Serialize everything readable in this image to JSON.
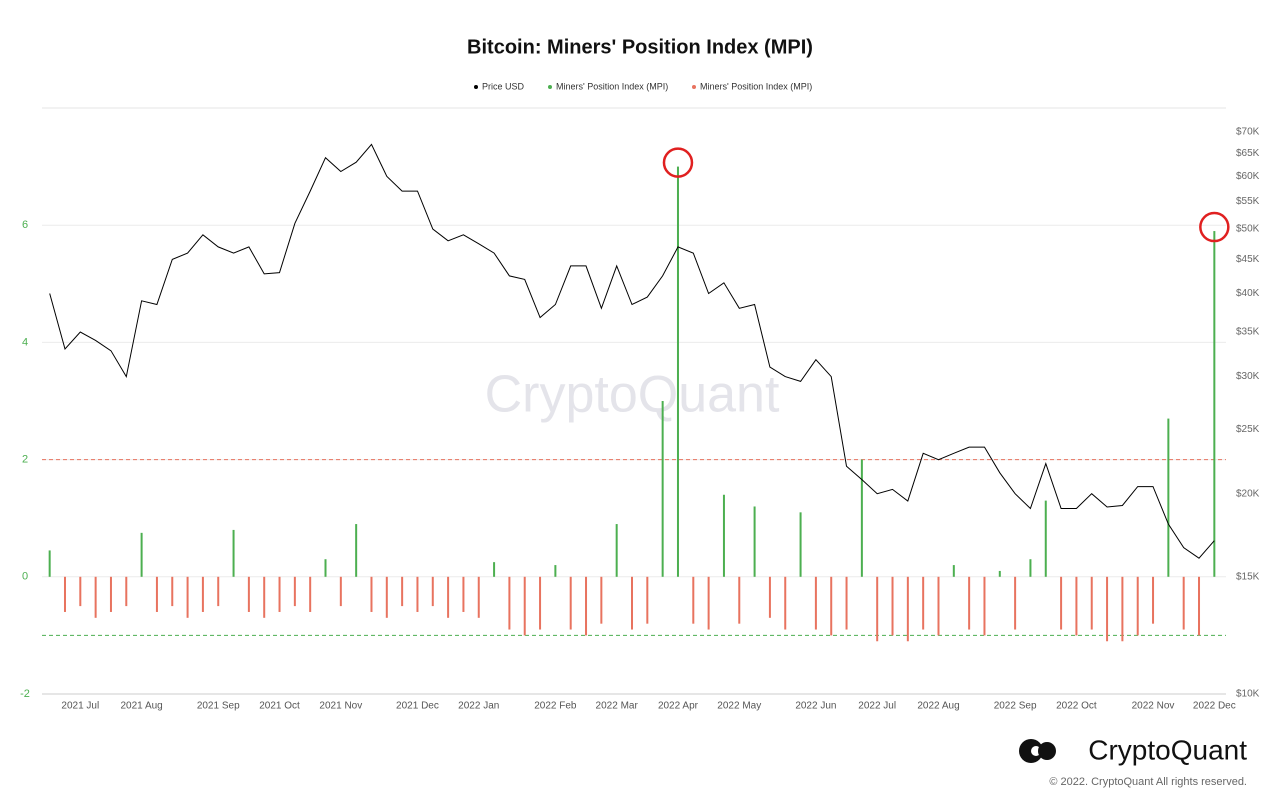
{
  "chart_data": {
    "type": "bar-line",
    "title": "Bitcoin: Miners' Position Index (MPI)",
    "watermark": "CryptoQuant",
    "categories": [
      null,
      null,
      "2021 Jul",
      null,
      null,
      null,
      "2021 Aug",
      null,
      null,
      null,
      null,
      "2021 Sep",
      null,
      null,
      null,
      "2021 Oct",
      null,
      null,
      null,
      "2021 Nov",
      null,
      null,
      null,
      null,
      "2021 Dec",
      null,
      null,
      null,
      "2022 Jan",
      null,
      null,
      null,
      null,
      "2022 Feb",
      null,
      null,
      null,
      "2022 Mar",
      null,
      null,
      null,
      "2022 Apr",
      null,
      null,
      null,
      "2022 May",
      null,
      null,
      null,
      null,
      "2022 Jun",
      null,
      null,
      null,
      "2022 Jul",
      null,
      null,
      null,
      "2022 Aug",
      null,
      null,
      null,
      null,
      "2022 Sep",
      null,
      null,
      null,
      "2022 Oct",
      null,
      null,
      null,
      null,
      "2022 Nov",
      null,
      null,
      null,
      "2022 Dec"
    ],
    "series": [
      {
        "name": "Price USD",
        "color": "#000000",
        "axis": "y2",
        "kind": "line",
        "values": [
          40000,
          33000,
          35000,
          34000,
          32800,
          30000,
          39000,
          38500,
          45000,
          46000,
          49000,
          47000,
          46000,
          47000,
          42800,
          43000,
          51000,
          57000,
          64000,
          61000,
          63000,
          67000,
          60000,
          57000,
          57000,
          50000,
          48000,
          49000,
          47500,
          46000,
          42500,
          42000,
          36800,
          38500,
          44000,
          44000,
          38000,
          44000,
          38500,
          39500,
          42500,
          47000,
          46000,
          40000,
          41500,
          38000,
          38500,
          31000,
          30000,
          29500,
          31800,
          30000,
          22000,
          21000,
          20000,
          20300,
          19500,
          23000,
          22500,
          23000,
          23500,
          23500,
          21500,
          20000,
          19000,
          22200,
          19000,
          19000,
          20000,
          19100,
          19200,
          20500,
          20500,
          18000,
          16600,
          16000,
          17000
        ]
      },
      {
        "name": "Miners' Position Index (MPI)",
        "color": "#4caf50",
        "kind": "bar",
        "values": [
          0.45,
          null,
          null,
          null,
          null,
          null,
          0.75,
          null,
          null,
          null,
          null,
          null,
          0.8,
          null,
          null,
          null,
          null,
          null,
          0.3,
          null,
          0.9,
          null,
          null,
          null,
          null,
          null,
          null,
          null,
          null,
          0.25,
          null,
          null,
          null,
          0.2,
          null,
          null,
          null,
          0.9,
          null,
          null,
          3.0,
          7.0,
          null,
          null,
          1.4,
          null,
          1.2,
          null,
          null,
          1.1,
          null,
          null,
          null,
          2.0,
          null,
          null,
          null,
          null,
          null,
          0.2,
          null,
          null,
          0.1,
          null,
          0.3,
          1.3,
          null,
          null,
          null,
          null,
          null,
          null,
          null,
          2.7,
          null,
          null,
          5.9
        ]
      },
      {
        "name": "Miners' Position Index (MPI)",
        "color": "#e8735f",
        "kind": "bar",
        "values": [
          null,
          -0.6,
          -0.5,
          -0.7,
          -0.6,
          -0.5,
          null,
          -0.6,
          -0.5,
          -0.7,
          -0.6,
          -0.5,
          null,
          -0.6,
          -0.7,
          -0.6,
          -0.5,
          -0.6,
          null,
          -0.5,
          null,
          -0.6,
          -0.7,
          -0.5,
          -0.6,
          -0.5,
          -0.7,
          -0.6,
          -0.7,
          null,
          -0.9,
          -1.0,
          -0.9,
          null,
          -0.9,
          -1.0,
          -0.8,
          null,
          -0.9,
          -0.8,
          null,
          null,
          -0.8,
          -0.9,
          null,
          -0.8,
          null,
          -0.7,
          -0.9,
          null,
          -0.9,
          -1.0,
          -0.9,
          null,
          -1.1,
          -1.0,
          -1.1,
          -0.9,
          -1.0,
          null,
          -0.9,
          -1.0,
          null,
          -0.9,
          null,
          null,
          -0.9,
          -1.0,
          -0.9,
          -1.1,
          -1.1,
          -1.0,
          -0.8,
          null,
          -0.9,
          -1.0,
          null
        ]
      }
    ],
    "ylim": [
      -2,
      8
    ],
    "yticks": [
      -2,
      0,
      2,
      4,
      6
    ],
    "ytick_color": "#4caf50",
    "y2lim": [
      10000,
      76000
    ],
    "y2_log": true,
    "y2ticks": [
      {
        "value": 10000,
        "label": "$10K"
      },
      {
        "value": 15000,
        "label": "$15K"
      },
      {
        "value": 20000,
        "label": "$20K"
      },
      {
        "value": 25000,
        "label": "$25K"
      },
      {
        "value": 30000,
        "label": "$30K"
      },
      {
        "value": 35000,
        "label": "$35K"
      },
      {
        "value": 40000,
        "label": "$40K"
      },
      {
        "value": 45000,
        "label": "$45K"
      },
      {
        "value": 50000,
        "label": "$50K"
      },
      {
        "value": 55000,
        "label": "$55K"
      },
      {
        "value": 60000,
        "label": "$60K"
      },
      {
        "value": 65000,
        "label": "$65K"
      },
      {
        "value": 70000,
        "label": "$70K"
      }
    ],
    "thresholds": [
      {
        "value": 2,
        "color": "#e8735f"
      },
      {
        "value": -1,
        "color": "#4caf50"
      }
    ],
    "grid": true,
    "legend": "top"
  },
  "footer": {
    "brand": "CryptoQuant",
    "copyright": "© 2022. CryptoQuant All rights reserved."
  }
}
